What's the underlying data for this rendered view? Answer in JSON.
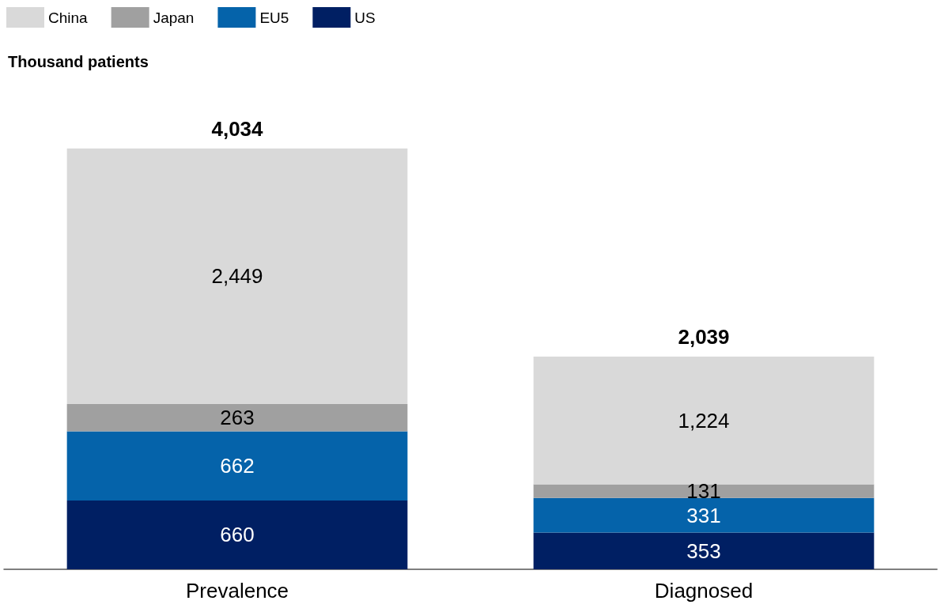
{
  "chart_data": {
    "type": "bar",
    "stacked": true,
    "ylabel": "Thousand patients",
    "categories": [
      "Prevalence",
      "Diagnosed"
    ],
    "series": [
      {
        "name": "US",
        "color": "#001f63",
        "values": [
          660,
          353
        ],
        "value_labels": [
          "660",
          "353"
        ]
      },
      {
        "name": "EU5",
        "color": "#0563aa",
        "values": [
          662,
          331
        ],
        "value_labels": [
          "662",
          "331"
        ]
      },
      {
        "name": "Japan",
        "color": "#a0a0a0",
        "values": [
          263,
          131
        ],
        "value_labels": [
          "263",
          "131"
        ]
      },
      {
        "name": "China",
        "color": "#d9d9d9",
        "values": [
          2449,
          1224
        ],
        "value_labels": [
          "2,449",
          "1,224"
        ]
      }
    ],
    "totals": [
      "4,034",
      "2,039"
    ],
    "legend": "top left"
  }
}
